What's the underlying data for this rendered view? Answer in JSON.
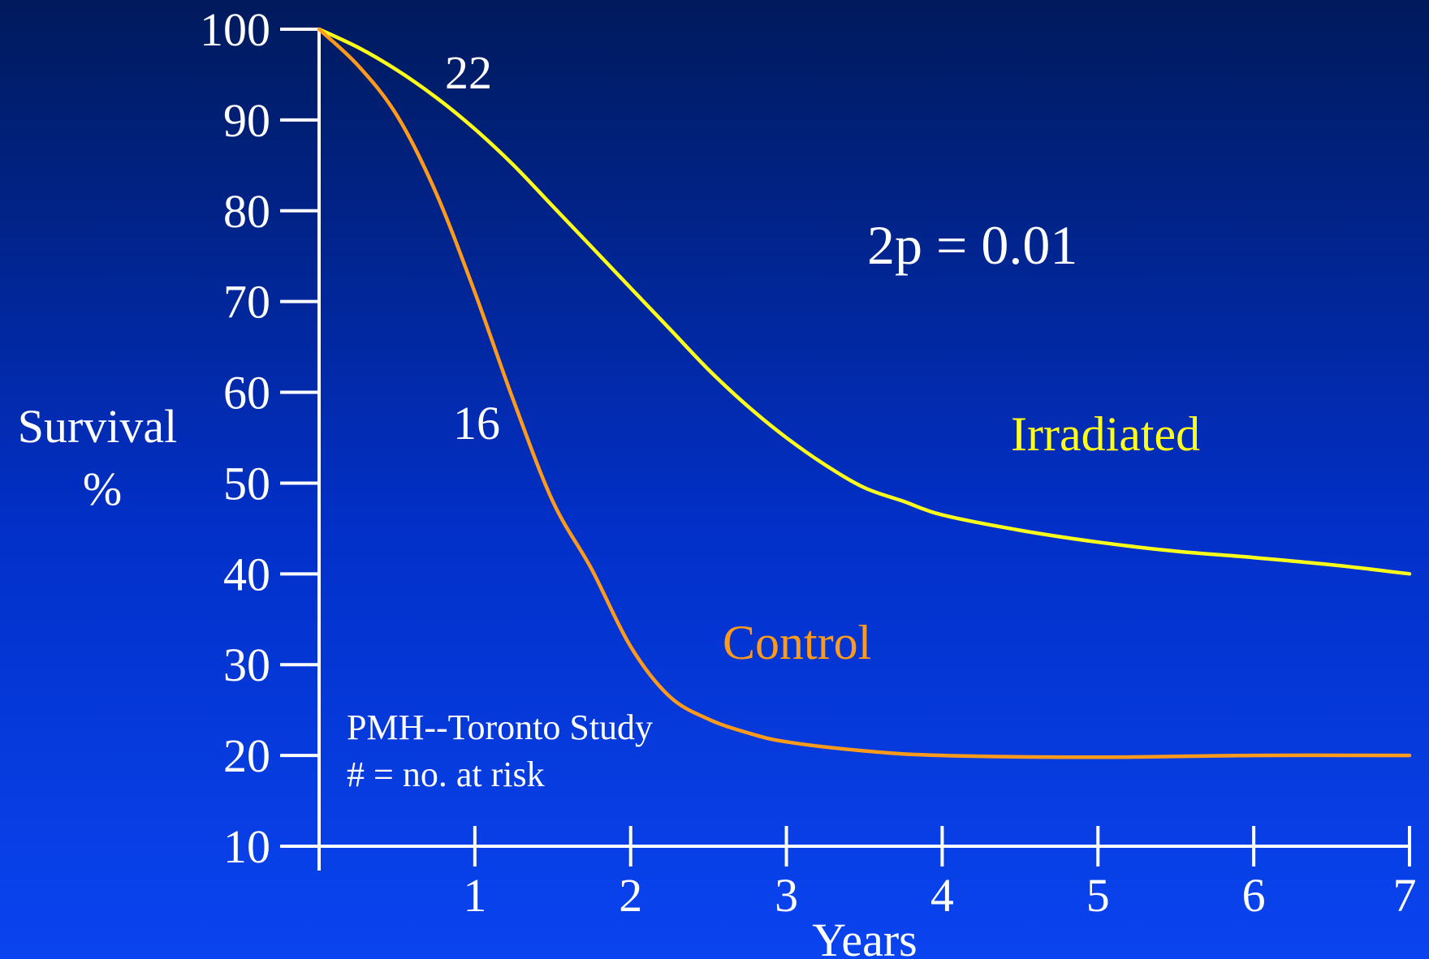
{
  "chart_data": {
    "type": "line",
    "xlabel": "Years",
    "ylabel_lines": [
      "Survival",
      "%"
    ],
    "xlim": [
      0,
      7
    ],
    "ylim": [
      10,
      100
    ],
    "x_ticks": [
      "1",
      "2",
      "3",
      "4",
      "5",
      "6",
      "7"
    ],
    "y_ticks": [
      "100",
      "90",
      "80",
      "70",
      "60",
      "50",
      "40",
      "30",
      "20",
      "10"
    ],
    "grid": false,
    "series": [
      {
        "name": "Irradiated",
        "color": "#ffff1a",
        "x": [
          0,
          0.25,
          0.5,
          0.75,
          1.0,
          1.25,
          1.5,
          1.75,
          2.0,
          2.25,
          2.5,
          2.75,
          3.0,
          3.25,
          3.5,
          3.75,
          4.0,
          4.5,
          5.0,
          5.5,
          6.0,
          6.5,
          7.0
        ],
        "y": [
          100,
          98,
          95.5,
          92.5,
          89,
          85,
          80.5,
          76,
          71.5,
          67,
          62.5,
          58.5,
          55,
          52,
          49.5,
          48,
          46.5,
          44.8,
          43.5,
          42.5,
          41.8,
          41,
          40
        ]
      },
      {
        "name": "Control",
        "color": "#ff9a1a",
        "x": [
          0,
          0.25,
          0.5,
          0.75,
          1.0,
          1.25,
          1.5,
          1.75,
          2.0,
          2.25,
          2.5,
          2.75,
          3.0,
          3.5,
          4.0,
          5.0,
          6.0,
          7.0
        ],
        "y": [
          100,
          96,
          90.5,
          82,
          71,
          59,
          48,
          40.5,
          32,
          26.5,
          24,
          22.5,
          21.5,
          20.5,
          20,
          19.8,
          20,
          20
        ]
      }
    ],
    "annotations": {
      "p_value": "2p = 0.01",
      "at_risk_irradiated": "22",
      "at_risk_control": "16",
      "study_name": "PMH--Toronto Study",
      "at_risk_note": "# = no. at risk"
    }
  }
}
